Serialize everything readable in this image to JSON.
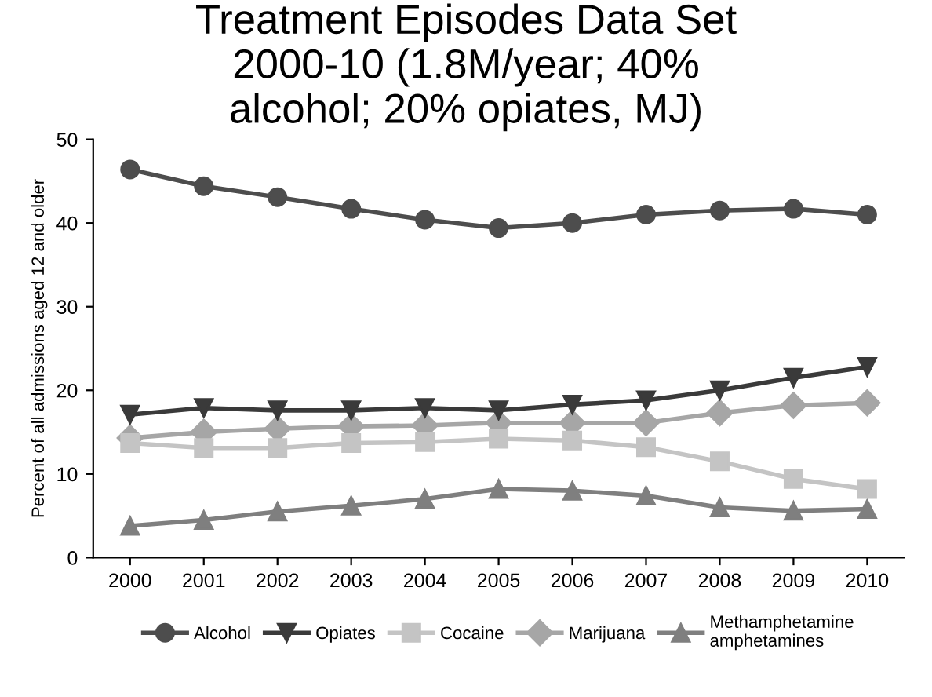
{
  "chart_data": {
    "type": "line",
    "title": "Treatment Episodes Data Set\n2000-10 (1.8M/year; 40%\nalcohol; 20% opiates, MJ)",
    "ylabel": "Percent of all admissions aged 12 and older",
    "categories": [
      "2000",
      "2001",
      "2002",
      "2003",
      "2004",
      "2005",
      "2006",
      "2007",
      "2008",
      "2009",
      "2010"
    ],
    "series": [
      {
        "name": "Alcohol",
        "color": "#4d4d4d",
        "marker": "circle",
        "values": [
          46.4,
          44.4,
          43.1,
          41.7,
          40.4,
          39.4,
          40.0,
          41.0,
          41.5,
          41.7,
          41.0
        ]
      },
      {
        "name": "Opiates",
        "color": "#3a3a3a",
        "marker": "triangle",
        "values": [
          17.1,
          17.9,
          17.6,
          17.6,
          17.9,
          17.6,
          18.3,
          18.8,
          20.0,
          21.5,
          22.8
        ]
      },
      {
        "name": "Cocaine",
        "color": "#c4c4c4",
        "marker": "square",
        "values": [
          13.7,
          13.1,
          13.1,
          13.7,
          13.8,
          14.2,
          14.0,
          13.2,
          11.5,
          9.4,
          8.2
        ]
      },
      {
        "name": "Marijuana",
        "color": "#a6a6a6",
        "marker": "diamond",
        "values": [
          14.3,
          15.0,
          15.4,
          15.7,
          15.8,
          16.1,
          16.1,
          16.1,
          17.3,
          18.2,
          18.5
        ]
      },
      {
        "name": "Methamphetamine\namphetamines",
        "color": "#7f7f7f",
        "marker": "triangle",
        "values": [
          3.8,
          4.5,
          5.5,
          6.2,
          7.0,
          8.2,
          8.0,
          7.4,
          6.0,
          5.6,
          5.8
        ]
      }
    ],
    "ylim": [
      0,
      50
    ],
    "yticks": [
      0,
      10,
      20,
      30,
      40,
      50
    ],
    "grid": false,
    "legend": "bottom",
    "line_style": "solid"
  }
}
